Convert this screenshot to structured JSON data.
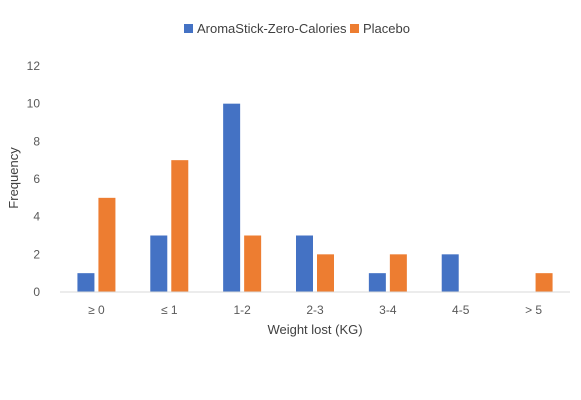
{
  "chart_data": {
    "type": "bar",
    "categories": [
      "≥ 0",
      "≤ 1",
      "1-2",
      "2-3",
      "3-4",
      "4-5",
      "> 5"
    ],
    "series": [
      {
        "name": "AromaStick-Zero-Calories",
        "values": [
          1,
          3,
          10,
          3,
          1,
          2,
          0
        ],
        "color": "#4472C4"
      },
      {
        "name": "Placebo",
        "values": [
          5,
          7,
          3,
          2,
          2,
          0,
          1
        ],
        "color": "#ED7D31"
      }
    ],
    "title": "",
    "xlabel": "Weight lost (KG)",
    "ylabel": "Frequency",
    "ylim": [
      0,
      12
    ],
    "yticks": [
      0,
      2,
      4,
      6,
      8,
      10,
      12
    ],
    "grid": false,
    "legend_position": "top",
    "axis_color": "#D9D9D9"
  }
}
